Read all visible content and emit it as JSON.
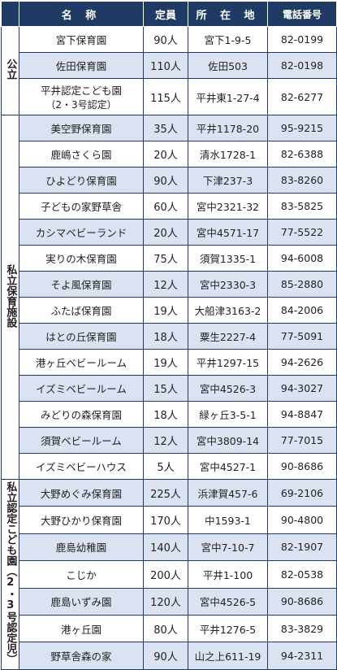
{
  "headers": {
    "category": "",
    "name": "名 称",
    "capacity": "定員",
    "address": "所 在 地",
    "phone": "電話番号"
  },
  "groups": [
    {
      "label": "公立",
      "rows": [
        {
          "name": "宮下保育園",
          "capacity": "90人",
          "address": "宮下1-9-5",
          "phone": "82-0199"
        },
        {
          "name": "佐田保育園",
          "capacity": "110人",
          "address": "佐田503",
          "phone": "82-0198"
        },
        {
          "name": "平井認定こども園",
          "name2": "（2・3号認定）",
          "capacity": "115人",
          "address": "平井東1-27-4",
          "phone": "82-6277"
        }
      ]
    },
    {
      "label": "私立保育施設",
      "rows": [
        {
          "name": "美空野保育園",
          "capacity": "35人",
          "address": "平井1178-20",
          "phone": "95-9215"
        },
        {
          "name": "鹿嶋さくら園",
          "capacity": "20人",
          "address": "清水1728-1",
          "phone": "82-6388"
        },
        {
          "name": "ひよどり保育園",
          "capacity": "90人",
          "address": "下津237-3",
          "phone": "83-8260"
        },
        {
          "name": "子どもの家野草舎",
          "capacity": "60人",
          "address": "宮中2321-32",
          "phone": "83-5825"
        },
        {
          "name": "カシマベビーランド",
          "capacity": "20人",
          "address": "宮中4571-17",
          "phone": "77-5522"
        },
        {
          "name": "実りの木保育園",
          "capacity": "75人",
          "address": "須賀1335-1",
          "phone": "94-6008"
        },
        {
          "name": "そよ風保育園",
          "capacity": "12人",
          "address": "宮中2330-3",
          "phone": "85-2880"
        },
        {
          "name": "ふたば保育園",
          "capacity": "19人",
          "address": "大船津3163-2",
          "phone": "84-2006"
        },
        {
          "name": "はとの丘保育園",
          "capacity": "18人",
          "address": "粟生2227-4",
          "phone": "77-5091"
        },
        {
          "name": "港ヶ丘ベビールーム",
          "capacity": "19人",
          "address": "平井1297-15",
          "phone": "94-2626"
        },
        {
          "name": "イズミベビールーム",
          "capacity": "15人",
          "address": "宮中4526-3",
          "phone": "94-3027"
        },
        {
          "name": "みどりの森保育園",
          "capacity": "18人",
          "address": "緑ヶ丘3-5-1",
          "phone": "94-8847"
        },
        {
          "name": "須賀ベビールーム",
          "capacity": "12人",
          "address": "宮中3809-14",
          "phone": "77-7015"
        },
        {
          "name": "イズミベビーハウス",
          "capacity": "5人",
          "address": "宮中4527-1",
          "phone": "90-8686"
        }
      ]
    },
    {
      "label": "私立認定こども園（2・3号認定児）",
      "rows": [
        {
          "name": "大野めぐみ保育園",
          "capacity": "225人",
          "address": "浜津賀457-6",
          "phone": "69-2106"
        },
        {
          "name": "大野ひかり保育園",
          "capacity": "170人",
          "address": "中1593-1",
          "phone": "90-4800"
        },
        {
          "name": "鹿島幼稚園",
          "capacity": "140人",
          "address": "宮中7-10-7",
          "phone": "82-1907"
        },
        {
          "name": "こじか",
          "capacity": "200人",
          "address": "平井1-100",
          "phone": "82-0538"
        },
        {
          "name": "鹿島いずみ園",
          "capacity": "120人",
          "address": "宮中4526-5",
          "phone": "90-8686"
        },
        {
          "name": "港ヶ丘園",
          "capacity": "80人",
          "address": "平井1276-5",
          "phone": "83-3829"
        },
        {
          "name": "野草舎森の家",
          "capacity": "90人",
          "address": "山之上611-19",
          "phone": "94-2311"
        }
      ]
    }
  ]
}
